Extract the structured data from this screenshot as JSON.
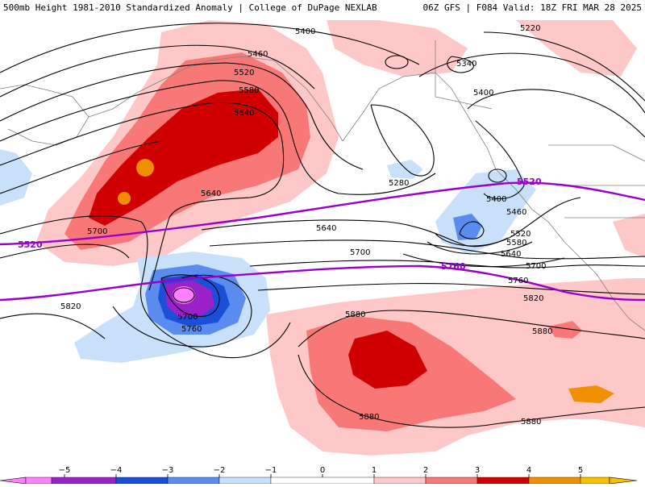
{
  "header": {
    "title_left": "500mb Height 1981-2010 Standardized Anomaly | College of DuPage NEXLAB",
    "title_right": "06Z GFS | F084 Valid: 18Z FRI MAR 28 2025"
  },
  "colors": {
    "anom_m5": "#ff80ff",
    "anom_m4": "#9a20c8",
    "anom_m3": "#1a4fd8",
    "anom_m2": "#5a8cf0",
    "anom_m1": "#c8e0fa",
    "anom_p1": "#ffc8c8",
    "anom_p2": "#f87878",
    "anom_p3": "#d00000",
    "anom_p4": "#f09000",
    "anom_p5": "#f8c000",
    "purple_line": "#9900cc",
    "coast": "#808080"
  },
  "contour_labels": [
    {
      "text": "5400"
    },
    {
      "text": "5460"
    },
    {
      "text": "5520"
    },
    {
      "text": "5580"
    },
    {
      "text": "5640"
    },
    {
      "text": "5640"
    },
    {
      "text": "5700"
    },
    {
      "text": "5280"
    },
    {
      "text": "5640"
    },
    {
      "text": "5700"
    },
    {
      "text": "5820"
    },
    {
      "text": "5700"
    },
    {
      "text": "5760"
    },
    {
      "text": "5880"
    },
    {
      "text": "5880"
    },
    {
      "text": "5880"
    },
    {
      "text": "5880"
    },
    {
      "text": "5220"
    },
    {
      "text": "5340"
    },
    {
      "text": "5400"
    },
    {
      "text": "5400"
    },
    {
      "text": "5460"
    },
    {
      "text": "5520"
    },
    {
      "text": "5580"
    },
    {
      "text": "5640"
    },
    {
      "text": "5700"
    },
    {
      "text": "5760"
    },
    {
      "text": "5820"
    }
  ],
  "thickness_labels": [
    {
      "text": "5520"
    },
    {
      "text": "5520"
    },
    {
      "text": "5760"
    }
  ],
  "colorbar": {
    "ticks": [
      "−5",
      "−4",
      "−3",
      "−2",
      "−1",
      "0",
      "1",
      "2",
      "3",
      "4",
      "5"
    ]
  }
}
